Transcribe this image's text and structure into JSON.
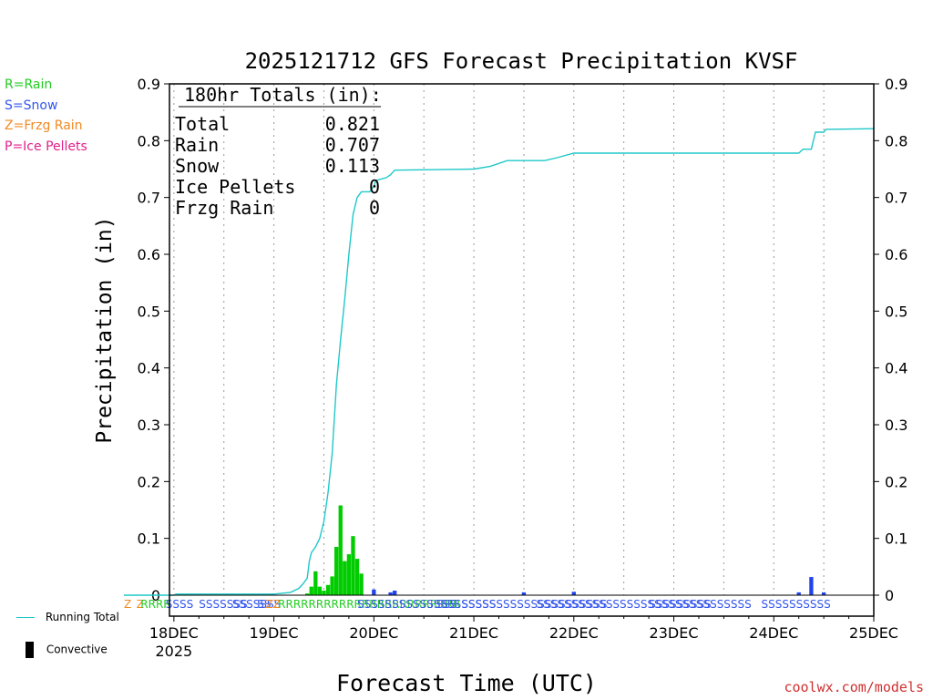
{
  "legend": {
    "rain": "R=Rain",
    "snow": "S=Snow",
    "frzg": "Z=Frzg Rain",
    "ice": "P=Ice Pellets",
    "running_total": "Running Total",
    "convective": "Convective"
  },
  "colors": {
    "rain": "#22cc22",
    "snow": "#3355ee",
    "frzg": "#f08a24",
    "ice": "#e0208a",
    "running": "#20c8c8",
    "rain_bar": "#00cc00",
    "snow_bar": "#2244ee",
    "site": "#d03030"
  },
  "site": "coolwx.com/models",
  "chart_data": {
    "type": "bar",
    "title": "2025121712 GFS Forecast Precipitation KVSF",
    "xlabel": "Forecast Time (UTC)",
    "ylabel": "Precipitation (in)",
    "ylim": [
      0,
      0.9
    ],
    "yticks": [
      "0",
      "0.1",
      "0.2",
      "0.3",
      "0.4",
      "0.5",
      "0.6",
      "0.7",
      "0.8",
      "0.9"
    ],
    "x_range_hours": [
      0,
      180
    ],
    "xticks": [
      {
        "hour": 12,
        "label": "18DEC"
      },
      {
        "hour": 36,
        "label": "19DEC"
      },
      {
        "hour": 60,
        "label": "20DEC"
      },
      {
        "hour": 84,
        "label": "21DEC"
      },
      {
        "hour": 108,
        "label": "22DEC"
      },
      {
        "hour": 132,
        "label": "23DEC"
      },
      {
        "hour": 156,
        "label": "24DEC"
      },
      {
        "hour": 180,
        "label": "25DEC"
      }
    ],
    "year_label": "2025",
    "totals": {
      "header": "180hr Totals (in):",
      "rows": [
        {
          "label": "Total",
          "value": "0.821"
        },
        {
          "label": "Rain",
          "value": "0.707"
        },
        {
          "label": "Snow",
          "value": "0.113"
        },
        {
          "label": "Ice Pellets",
          "value": "0"
        },
        {
          "label": "Frzg Rain",
          "value": "0"
        }
      ]
    },
    "rain_bars": [
      {
        "hour": 44,
        "value": 0.003
      },
      {
        "hour": 45,
        "value": 0.015
      },
      {
        "hour": 46,
        "value": 0.042
      },
      {
        "hour": 47,
        "value": 0.015
      },
      {
        "hour": 48,
        "value": 0.008
      },
      {
        "hour": 49,
        "value": 0.018
      },
      {
        "hour": 50,
        "value": 0.033
      },
      {
        "hour": 51,
        "value": 0.085
      },
      {
        "hour": 52,
        "value": 0.158
      },
      {
        "hour": 53,
        "value": 0.06
      },
      {
        "hour": 54,
        "value": 0.072
      },
      {
        "hour": 55,
        "value": 0.104
      },
      {
        "hour": 56,
        "value": 0.064
      },
      {
        "hour": 57,
        "value": 0.038
      }
    ],
    "snow_bars": [
      {
        "hour": 60,
        "value": 0.01
      },
      {
        "hour": 64,
        "value": 0.005
      },
      {
        "hour": 65,
        "value": 0.008
      },
      {
        "hour": 96,
        "value": 0.005
      },
      {
        "hour": 108,
        "value": 0.006
      },
      {
        "hour": 162,
        "value": 0.005
      },
      {
        "hour": 165,
        "value": 0.032
      },
      {
        "hour": 168,
        "value": 0.005
      }
    ],
    "running_total": [
      [
        0,
        0
      ],
      [
        12,
        0
      ],
      [
        12.5,
        0.002
      ],
      [
        36,
        0.002
      ],
      [
        40,
        0.005
      ],
      [
        42,
        0.012
      ],
      [
        43,
        0.02
      ],
      [
        44,
        0.03
      ],
      [
        44.5,
        0.06
      ],
      [
        45,
        0.075
      ],
      [
        46,
        0.085
      ],
      [
        47,
        0.1
      ],
      [
        48,
        0.13
      ],
      [
        49,
        0.18
      ],
      [
        50,
        0.25
      ],
      [
        51,
        0.37
      ],
      [
        52,
        0.45
      ],
      [
        53,
        0.52
      ],
      [
        54,
        0.6
      ],
      [
        55,
        0.67
      ],
      [
        56,
        0.7
      ],
      [
        57,
        0.71
      ],
      [
        59,
        0.71
      ],
      [
        60,
        0.72
      ],
      [
        60.5,
        0.73
      ],
      [
        63,
        0.735
      ],
      [
        64,
        0.74
      ],
      [
        65,
        0.748
      ],
      [
        84,
        0.75
      ],
      [
        88,
        0.755
      ],
      [
        92,
        0.765
      ],
      [
        101,
        0.765
      ],
      [
        104,
        0.77
      ],
      [
        108,
        0.778
      ],
      [
        162,
        0.778
      ],
      [
        163,
        0.785
      ],
      [
        165,
        0.785
      ],
      [
        166,
        0.815
      ],
      [
        168,
        0.815
      ],
      [
        168.5,
        0.82
      ],
      [
        180,
        0.821
      ]
    ],
    "ptype_rows": [
      {
        "type": "frzg",
        "start": 0,
        "text": "Z"
      },
      {
        "type": "frzg",
        "start": 3,
        "text": "Z"
      },
      {
        "type": "rain",
        "start": 4,
        "text": "RRRR"
      },
      {
        "type": "snow",
        "start": 10,
        "text": "SSSS"
      },
      {
        "type": "snow",
        "start": 18,
        "text": "SSSSSSS"
      },
      {
        "type": "snow",
        "start": 26,
        "text": "SSSSSSS"
      },
      {
        "type": "snow",
        "start": 32,
        "text": "SS"
      },
      {
        "type": "frzg",
        "start": 34,
        "text": "ZZ"
      },
      {
        "type": "rain",
        "start": 37,
        "text": "RRRRRRRRRRRRRRRRRRRRRRRR"
      },
      {
        "type": "snow",
        "start": 56,
        "text": "SSSSSSSSSSSSSSSSSSSS"
      },
      {
        "type": "snow",
        "start": 75,
        "text": "SSS"
      },
      {
        "type": "snow",
        "start": 81,
        "text": "SSSSSSSSSSSSSSSSSSSSS"
      },
      {
        "type": "snow",
        "start": 99,
        "text": "SSSSSSSSSSSSSSSSSSSSSSSSSSSSSSS"
      },
      {
        "type": "snow",
        "start": 126,
        "text": "SSSSSSSSS"
      },
      {
        "type": "snow",
        "start": 153,
        "text": "SSSSSSSSSS"
      }
    ]
  }
}
